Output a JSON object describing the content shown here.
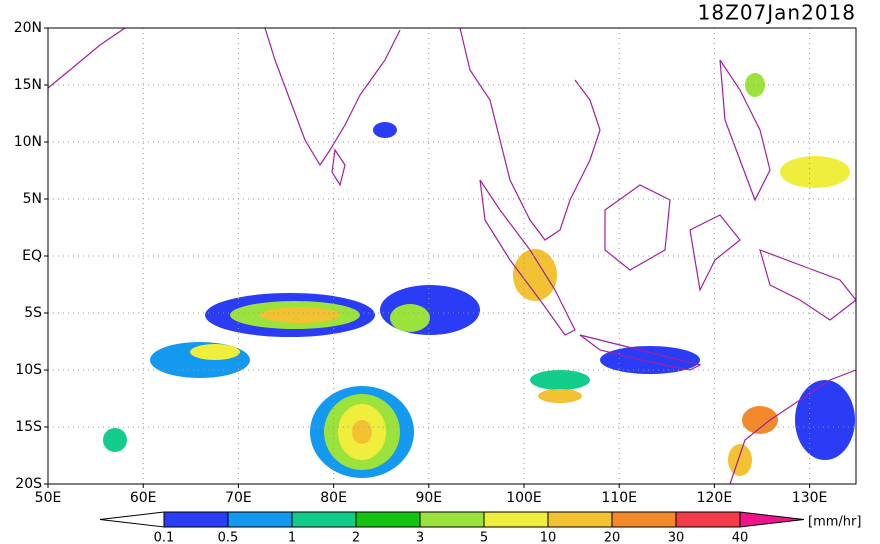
{
  "map": {
    "title": "18Z07Jan2018",
    "lat_labels": [
      "20N",
      "15N",
      "10N",
      "5N",
      "EQ",
      "5S",
      "10S",
      "15S",
      "20S"
    ],
    "lon_labels": [
      "50E",
      "60E",
      "70E",
      "80E",
      "90E",
      "100E",
      "110E",
      "120E",
      "130E"
    ],
    "colorbar": {
      "levels": [
        0.1,
        0.5,
        1,
        2,
        3,
        5,
        10,
        20,
        30,
        40
      ],
      "colors": [
        "#2a3cf5",
        "#1499f0",
        "#12cc8c",
        "#14c314",
        "#9ce23c",
        "#f0ee3c",
        "#f2c232",
        "#f28a2c",
        "#f23c4a"
      ],
      "under_color": "#ffffff",
      "over_color": "#f0148c",
      "unit": "[mm/hr]"
    }
  }
}
